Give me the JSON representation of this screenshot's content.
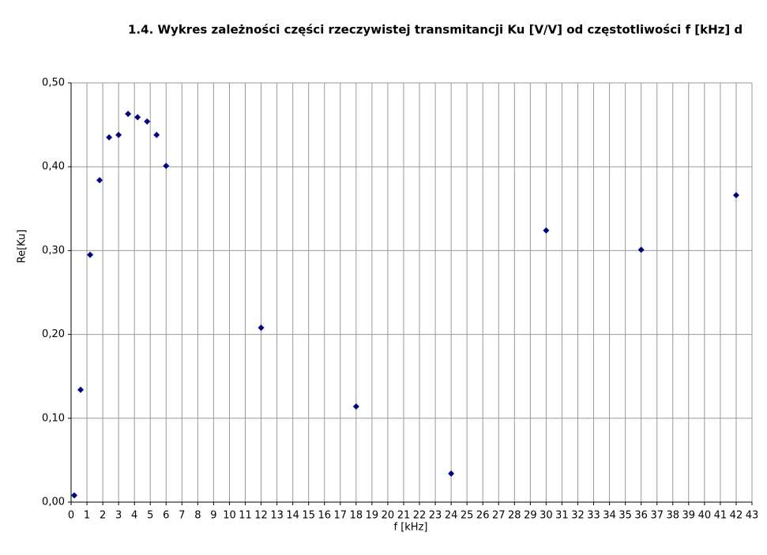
{
  "chart_data": {
    "type": "scatter",
    "title": "1.4. Wykres zależności części rzeczywistej transmitancji Ku [V/V] od częstotliwości f [kHz] d",
    "xlabel": "f [kHz]",
    "ylabel": "Re[Ku]",
    "series": [
      {
        "name": "Re[Ku]",
        "color": "#000080",
        "x": [
          0.2,
          0.6,
          1.2,
          1.8,
          2.4,
          3.0,
          3.6,
          4.2,
          4.8,
          5.4,
          6.0,
          12,
          18,
          24,
          30,
          36,
          42
        ],
        "values": [
          0.008,
          0.134,
          0.295,
          0.384,
          0.435,
          0.438,
          0.463,
          0.459,
          0.454,
          0.438,
          0.401,
          0.208,
          0.114,
          0.034,
          0.324,
          0.301,
          0.366
        ]
      }
    ],
    "xlim": [
      0,
      43
    ],
    "xticks": [
      0,
      1,
      2,
      3,
      4,
      5,
      6,
      7,
      8,
      9,
      10,
      11,
      12,
      13,
      14,
      15,
      16,
      17,
      18,
      19,
      20,
      21,
      22,
      23,
      24,
      25,
      26,
      27,
      28,
      29,
      30,
      31,
      32,
      33,
      34,
      35,
      36,
      37,
      38,
      39,
      40,
      41,
      42,
      43
    ],
    "ylim": [
      0,
      0.5
    ],
    "yticks": [
      {
        "value": 0,
        "label": "0,00"
      },
      {
        "value": 0.1,
        "label": "0,10"
      },
      {
        "value": 0.2,
        "label": "0,20"
      },
      {
        "value": 0.3,
        "label": "0,30"
      },
      {
        "value": 0.4,
        "label": "0,40"
      },
      {
        "value": 0.5,
        "label": "0,50"
      }
    ],
    "grid": true
  }
}
